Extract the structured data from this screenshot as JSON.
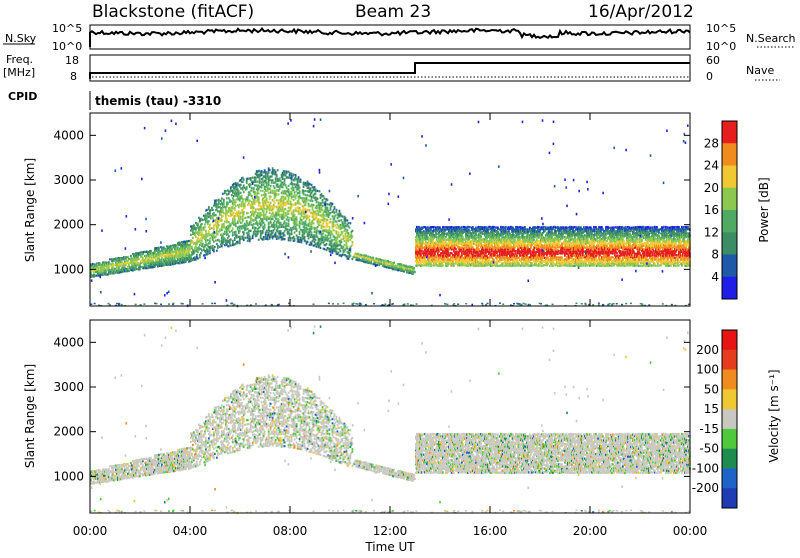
{
  "header": {
    "station": "Blackstone (fitACF)",
    "beam": "Beam 23",
    "date": "16/Apr/2012"
  },
  "top_panels": {
    "sky_label": "N.Sky",
    "sky_ticks": [
      "10^5",
      "10^0"
    ],
    "search_label": "N.Search",
    "search_ticks": [
      "10^5",
      "10^0"
    ],
    "freq_label": "Freq.",
    "freq_unit": "[MHz]",
    "freq_ticks": [
      "18",
      "8"
    ],
    "nave_label": "Nave",
    "nave_ticks": [
      "60",
      "0"
    ],
    "cpid_label": "CPID",
    "cpid_value": "themis (tau) -3310"
  },
  "chart_data": [
    {
      "type": "heatmap",
      "name": "power-panel",
      "ylabel": "Slant Range [km]",
      "yticks": [
        "4000",
        "3000",
        "2000",
        "1000"
      ],
      "ylim": [
        180,
        4500
      ],
      "xlim": [
        0,
        24
      ],
      "colorbar_label": "Power [dB]",
      "colorbar_ticks": [
        "28",
        "24",
        "20",
        "16",
        "12",
        "8",
        "4"
      ],
      "colors": [
        "#1e1ee6",
        "#1e5aa8",
        "#3c8c64",
        "#50aa64",
        "#8cc850",
        "#f0c832",
        "#f08c1e",
        "#e61e1e"
      ],
      "echo_bands": [
        {
          "from_hr": 0.0,
          "to_hr": 4.0,
          "range_from": 850,
          "range_to": 1500
        },
        {
          "from_hr": 4.0,
          "to_hr": 10.5,
          "range_from": 1300,
          "range_to": 2400
        },
        {
          "from_hr": 10.5,
          "to_hr": 13.0,
          "range_from": 900,
          "range_to": 1350
        },
        {
          "from_hr": 13.0,
          "to_hr": 24.0,
          "range_from": 1100,
          "range_to": 2000
        }
      ]
    },
    {
      "type": "heatmap",
      "name": "velocity-panel",
      "ylabel": "Slant Range [km]",
      "yticks": [
        "4000",
        "3000",
        "2000",
        "1000"
      ],
      "ylim": [
        180,
        4500
      ],
      "xlim": [
        0,
        24
      ],
      "xlabel": "Time UT",
      "xticks": [
        "00:00",
        "04:00",
        "08:00",
        "12:00",
        "16:00",
        "20:00",
        "00:00"
      ],
      "colorbar_label": "Velocity [m s⁻¹]",
      "colorbar_ticks": [
        "200",
        "100",
        "50",
        "15",
        "-15",
        "-50",
        "-100",
        "-200"
      ],
      "colors": [
        "#1e3cb4",
        "#1e64c8",
        "#1e8c50",
        "#50c83c",
        "#c8c8c0",
        "#f0c832",
        "#f08c1e",
        "#e63c1e",
        "#e61414"
      ]
    }
  ]
}
